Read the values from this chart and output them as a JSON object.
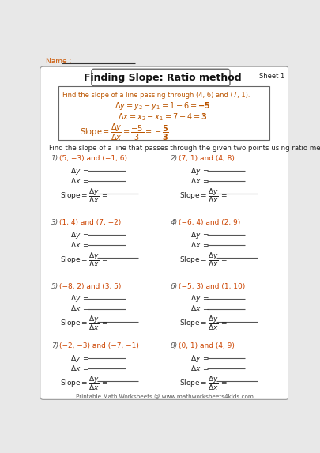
{
  "title": "Finding Slope: Ratio method",
  "sheet": "Sheet 1",
  "name_label": "Name :",
  "bg_color": "#e8e8e8",
  "instruction": "Find the slope of a line that passes through the given two points using ratio method.",
  "example_intro": "Find the slope of a line passing through (4, 6) and (7, 1).",
  "problems": [
    {
      "num": "1)",
      "points": "(5, −3) and (−1, 6)",
      "col": 0,
      "row": 0
    },
    {
      "num": "2)",
      "points": "(7, 1) and (4, 8)",
      "col": 1,
      "row": 0
    },
    {
      "num": "3)",
      "points": "(1, 4) and (7, −2)",
      "col": 0,
      "row": 1
    },
    {
      "num": "4)",
      "points": "(−6, 4) and (2, 9)",
      "col": 1,
      "row": 1
    },
    {
      "num": "5)",
      "points": "(−8, 2) and (3, 5)",
      "col": 0,
      "row": 2
    },
    {
      "num": "6)",
      "points": "(−5, 3) and (1, 10)",
      "col": 1,
      "row": 2
    },
    {
      "num": "7)",
      "points": "(−2, −3) and (−7, −1)",
      "col": 0,
      "row": 3
    },
    {
      "num": "8)",
      "points": "(0, 1) and (4, 9)",
      "col": 1,
      "row": 3
    }
  ],
  "footer": "Printable Math Worksheets @ www.mathworksheets4kids.com",
  "blue_color": "#cc5500",
  "dark_color": "#222222",
  "red_color": "#cc2200",
  "line_color": "#555555",
  "title_color": "#111111",
  "example_color": "#bb4400",
  "num_color": "#555555"
}
